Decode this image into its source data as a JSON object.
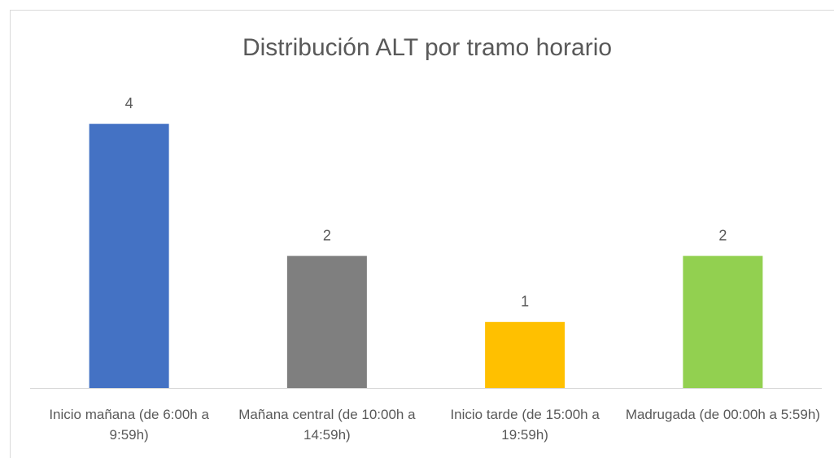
{
  "chart_data": {
    "type": "bar",
    "title": "Distribución ALT por tramo horario",
    "categories": [
      "Inicio mañana (de 6:00h a 9:59h)",
      "Mañana central (de 10:00h a 14:59h)",
      "Inicio tarde (de 15:00h a 19:59h)",
      "Madrugada (de 00:00h a 5:59h)"
    ],
    "values": [
      4,
      2,
      1,
      2
    ],
    "colors": [
      "#4472c4",
      "#7f7f7f",
      "#ffc000",
      "#92d050"
    ],
    "ylim": [
      0,
      5
    ]
  }
}
